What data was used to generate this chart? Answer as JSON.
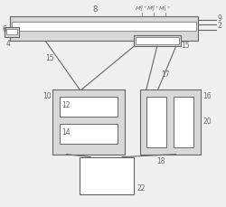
{
  "bg_color": "#f0f0f0",
  "line_color": "#666666",
  "box_fill": "#d8d8d8",
  "white_fill": "#ffffff",
  "figsize": [
    2.5,
    2.3
  ],
  "dpi": 100
}
